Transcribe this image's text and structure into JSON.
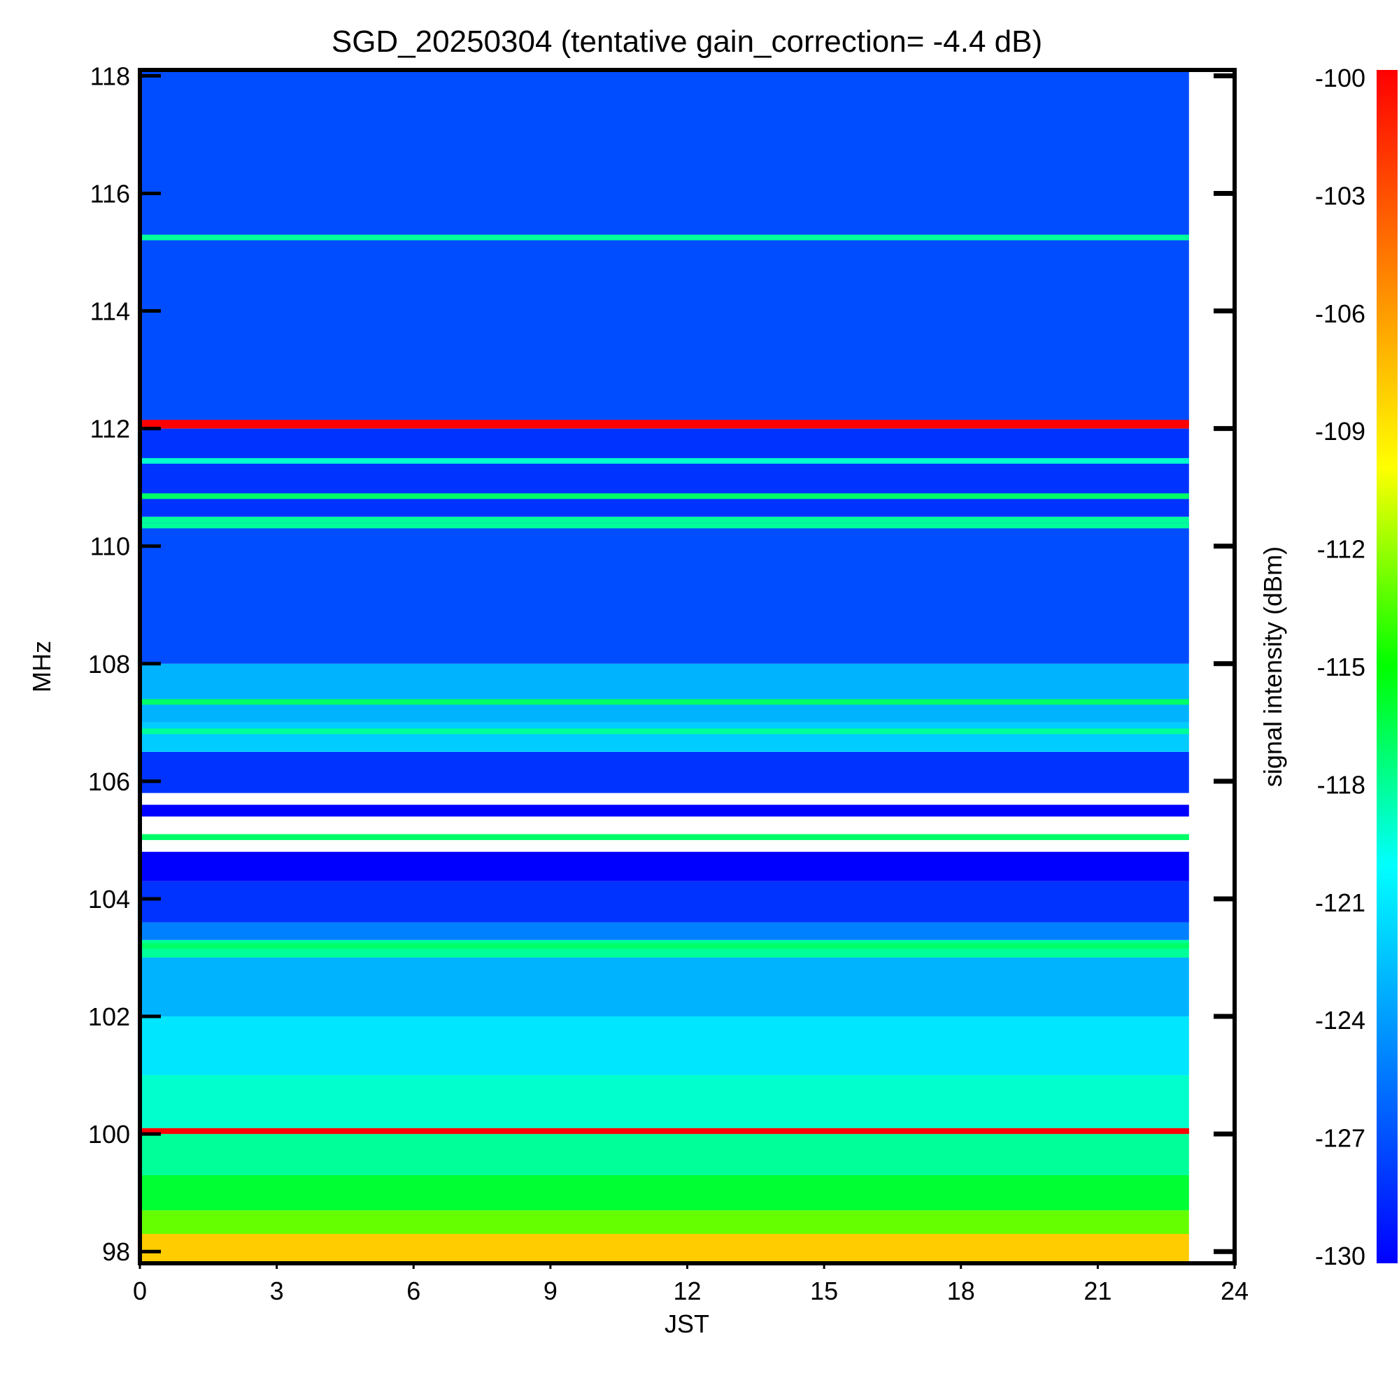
{
  "chart_data": {
    "type": "heatmap",
    "title": "SGD_20250304 (tentative gain_correction= -4.4 dB)",
    "xlabel": "JST",
    "ylabel": "MHz",
    "colorbar_label": "signal intensity (dBm)",
    "xlim": [
      0,
      24
    ],
    "ylim": [
      97.8,
      118.1
    ],
    "data_x_end": 23,
    "x_ticks": [
      "0",
      "3",
      "6",
      "9",
      "12",
      "15",
      "18",
      "21",
      "24"
    ],
    "x_tick_values": [
      0,
      3,
      6,
      9,
      12,
      15,
      18,
      21,
      24
    ],
    "y_ticks": [
      "98",
      "100",
      "102",
      "104",
      "106",
      "108",
      "110",
      "112",
      "114",
      "116",
      "118"
    ],
    "y_tick_values": [
      98,
      100,
      102,
      104,
      106,
      108,
      110,
      112,
      114,
      116,
      118
    ],
    "colorbar_ticks": [
      "-100",
      "-103",
      "-106",
      "-109",
      "-112",
      "-115",
      "-118",
      "-121",
      "-124",
      "-127",
      "-130"
    ],
    "colorbar_tick_values": [
      -100,
      -103,
      -106,
      -109,
      -112,
      -115,
      -118,
      -121,
      -124,
      -127,
      -130
    ],
    "colorbar_range": [
      -130,
      -100
    ],
    "colormap": [
      "#0000ff",
      "#0080ff",
      "#00ffff",
      "#00ff00",
      "#ffff00",
      "#ff8000",
      "#ff0000"
    ],
    "frequency_profile": [
      {
        "f0": 97.8,
        "f1": 98.3,
        "dbm": -108
      },
      {
        "f0": 98.3,
        "f1": 98.7,
        "dbm": -113
      },
      {
        "f0": 98.7,
        "f1": 99.3,
        "dbm": -116
      },
      {
        "f0": 99.3,
        "f1": 100.0,
        "dbm": -118
      },
      {
        "f0": 100.0,
        "f1": 100.1,
        "dbm": -100
      },
      {
        "f0": 100.1,
        "f1": 101.0,
        "dbm": -119
      },
      {
        "f0": 101.0,
        "f1": 102.0,
        "dbm": -121
      },
      {
        "f0": 102.0,
        "f1": 103.0,
        "dbm": -123
      },
      {
        "f0": 103.0,
        "f1": 103.3,
        "dbm": -118
      },
      {
        "f0": 103.3,
        "f1": 103.6,
        "dbm": -125
      },
      {
        "f0": 103.6,
        "f1": 104.3,
        "dbm": -128
      },
      {
        "f0": 104.3,
        "f1": 104.8,
        "dbm": -130
      },
      {
        "f0": 105.0,
        "f1": 105.1,
        "dbm": -117
      },
      {
        "f0": 105.4,
        "f1": 105.6,
        "dbm": -130
      },
      {
        "f0": 105.8,
        "f1": 106.5,
        "dbm": -128
      },
      {
        "f0": 106.5,
        "f1": 107.0,
        "dbm": -122
      },
      {
        "f0": 107.0,
        "f1": 108.0,
        "dbm": -123
      },
      {
        "f0": 108.0,
        "f1": 110.4,
        "dbm": -127
      },
      {
        "f0": 110.4,
        "f1": 110.5,
        "dbm": -118
      },
      {
        "f0": 110.5,
        "f1": 112.0,
        "dbm": -128
      },
      {
        "f0": 112.0,
        "f1": 112.1,
        "dbm": -100
      },
      {
        "f0": 112.1,
        "f1": 118.1,
        "dbm": -127
      }
    ],
    "strong_lines": [
      {
        "mhz": 100.05,
        "dbm": -100
      },
      {
        "mhz": 112.1,
        "dbm": -100
      },
      {
        "mhz": 105.05,
        "dbm": -117
      },
      {
        "mhz": 110.85,
        "dbm": -117
      },
      {
        "mhz": 110.35,
        "dbm": -118
      },
      {
        "mhz": 115.25,
        "dbm": -118
      },
      {
        "mhz": 107.35,
        "dbm": -117
      },
      {
        "mhz": 106.85,
        "dbm": -118
      },
      {
        "mhz": 103.2,
        "dbm": -117
      },
      {
        "mhz": 111.45,
        "dbm": -119
      }
    ]
  }
}
